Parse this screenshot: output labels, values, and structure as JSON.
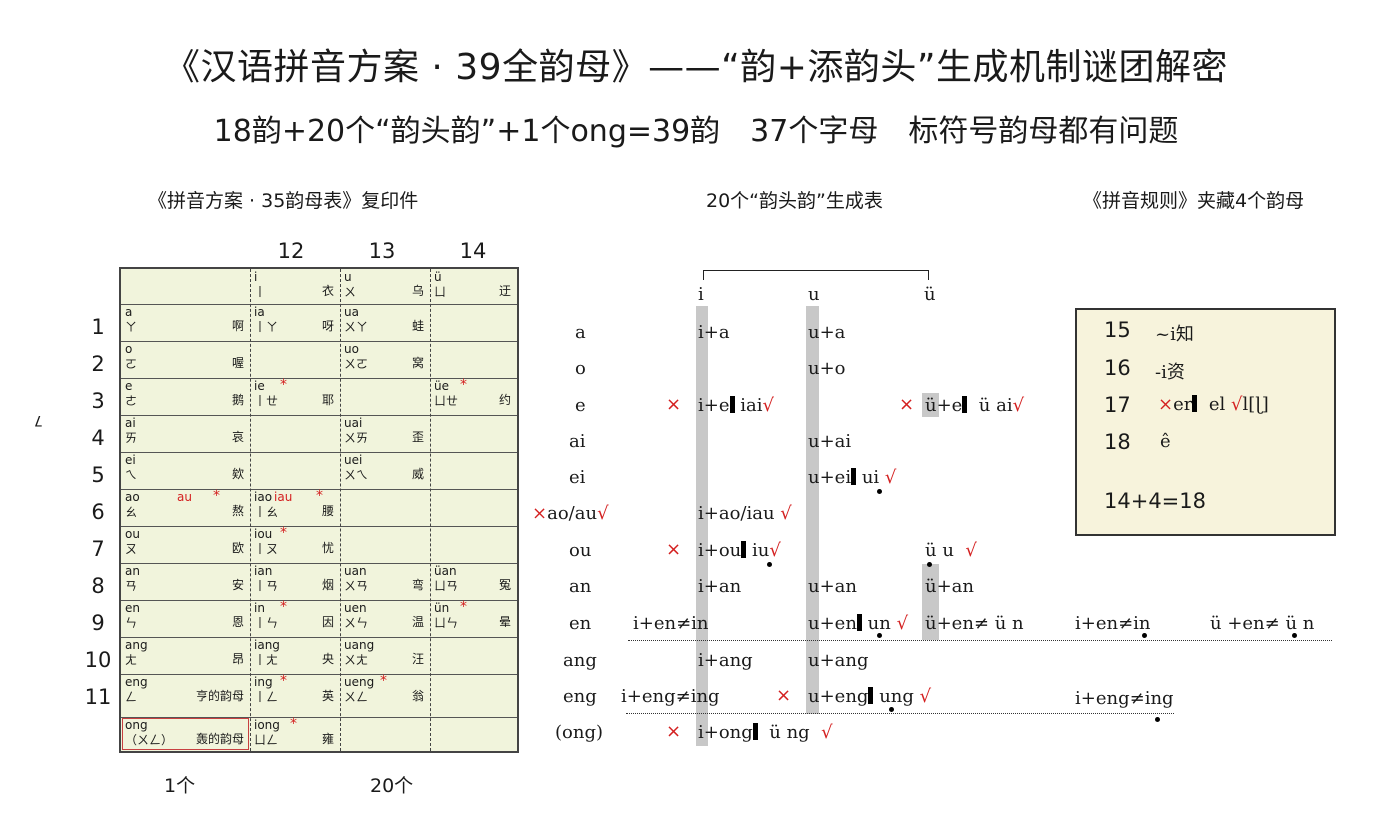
{
  "title": "《汉语拼音方案 · 39全韵母》——“韵+添韵头”生成机制谜团解密",
  "subtitle": "18韵+20个“韵头韵”+1个ong=39韵　37个字母　标符号韵母都有问题",
  "captions": {
    "left": "《拼音方案 · 35韵母表》复印件",
    "middle": "20个“韵头韵”生成表",
    "right": "《拼音规则》夹藏4个韵母"
  },
  "side_mark": "7",
  "col_numbers": [
    "12",
    "13",
    "14"
  ],
  "row_numbers": [
    "1",
    "2",
    "3",
    "4",
    "5",
    "6",
    "7",
    "8",
    "9",
    "10",
    "11"
  ],
  "bottom_labels": {
    "left": "1个",
    "middle": "20个"
  },
  "table": {
    "header": [
      {
        "py": "i",
        "zy": "丨",
        "hz": "衣"
      },
      {
        "py": "u",
        "zy": "ㄨ",
        "hz": "乌"
      },
      {
        "py": "ü",
        "zy": "ㄩ",
        "hz": "迂"
      }
    ],
    "rows": [
      [
        {
          "py": "a",
          "zy": "ㄚ",
          "hz": "啊"
        },
        {
          "py": "ia",
          "zy": "丨ㄚ",
          "hz": "呀"
        },
        {
          "py": "ua",
          "zy": "ㄨㄚ",
          "hz": "蛙"
        },
        {
          "py": "",
          "zy": "",
          "hz": ""
        }
      ],
      [
        {
          "py": "o",
          "zy": "ㄛ",
          "hz": "喔"
        },
        {
          "py": "",
          "zy": "",
          "hz": ""
        },
        {
          "py": "uo",
          "zy": "ㄨㄛ",
          "hz": "窝"
        },
        {
          "py": "",
          "zy": "",
          "hz": ""
        }
      ],
      [
        {
          "py": "e",
          "zy": "ㄜ",
          "hz": "鹅"
        },
        {
          "py": "ie",
          "zy": "丨ㄝ",
          "hz": "耶",
          "star": "*"
        },
        {
          "py": "",
          "zy": "",
          "hz": ""
        },
        {
          "py": "üe",
          "zy": "ㄩㄝ",
          "hz": "约",
          "star": "*"
        }
      ],
      [
        {
          "py": "ai",
          "zy": "ㄞ",
          "hz": "哀"
        },
        {
          "py": "",
          "zy": "",
          "hz": ""
        },
        {
          "py": "uai",
          "zy": "ㄨㄞ",
          "hz": "歪"
        },
        {
          "py": "",
          "zy": "",
          "hz": ""
        }
      ],
      [
        {
          "py": "ei",
          "zy": "ㄟ",
          "hz": "欸"
        },
        {
          "py": "",
          "zy": "",
          "hz": ""
        },
        {
          "py": "uei",
          "zy": "ㄨㄟ",
          "hz": "威"
        },
        {
          "py": "",
          "zy": "",
          "hz": ""
        }
      ],
      [
        {
          "py": "ao",
          "zy": "ㄠ",
          "hz": "熬",
          "extra": "au",
          "star": "*"
        },
        {
          "py": "iao",
          "zy": "丨ㄠ",
          "hz": "腰",
          "extra": "iau",
          "star": "*"
        },
        {
          "py": "",
          "zy": "",
          "hz": ""
        },
        {
          "py": "",
          "zy": "",
          "hz": ""
        }
      ],
      [
        {
          "py": "ou",
          "zy": "ㄡ",
          "hz": "欧"
        },
        {
          "py": "iou",
          "zy": "丨ㄡ",
          "hz": "忧",
          "star": "*"
        },
        {
          "py": "",
          "zy": "",
          "hz": ""
        },
        {
          "py": "",
          "zy": "",
          "hz": ""
        }
      ],
      [
        {
          "py": "an",
          "zy": "ㄢ",
          "hz": "安"
        },
        {
          "py": "ian",
          "zy": "丨ㄢ",
          "hz": "烟"
        },
        {
          "py": "uan",
          "zy": "ㄨㄢ",
          "hz": "弯"
        },
        {
          "py": "üan",
          "zy": "ㄩㄢ",
          "hz": "冤"
        }
      ],
      [
        {
          "py": "en",
          "zy": "ㄣ",
          "hz": "恩"
        },
        {
          "py": "in",
          "zy": "丨ㄣ",
          "hz": "因",
          "star": "*"
        },
        {
          "py": "uen",
          "zy": "ㄨㄣ",
          "hz": "温"
        },
        {
          "py": "ün",
          "zy": "ㄩㄣ",
          "hz": "晕",
          "star": "*"
        }
      ],
      [
        {
          "py": "ang",
          "zy": "ㄤ",
          "hz": "昂"
        },
        {
          "py": "iang",
          "zy": "丨ㄤ",
          "hz": "央"
        },
        {
          "py": "uang",
          "zy": "ㄨㄤ",
          "hz": "汪"
        },
        {
          "py": "",
          "zy": "",
          "hz": ""
        }
      ],
      [
        {
          "py": "eng",
          "zy": "ㄥ",
          "hz": "亨的韵母"
        },
        {
          "py": "ing",
          "zy": "丨ㄥ",
          "hz": "英",
          "star": "*"
        },
        {
          "py": "ueng",
          "zy": "ㄨㄥ",
          "hz": "翁",
          "star": "*"
        },
        {
          "py": "",
          "zy": "",
          "hz": ""
        }
      ],
      [
        {
          "py": "ong",
          "zy": "（ㄨㄥ）",
          "hz": "轰的韵母"
        },
        {
          "py": "iong",
          "zy": "ㄩㄥ",
          "hz": "雍",
          "star": "*"
        },
        {
          "py": "",
          "zy": "",
          "hz": ""
        },
        {
          "py": "",
          "zy": "",
          "hz": ""
        }
      ]
    ]
  },
  "middle": {
    "heads": [
      "i",
      "u",
      "ü"
    ],
    "finals": [
      "a",
      "o",
      "e",
      "ai",
      "ei",
      "ao/au",
      "ou",
      "an",
      "en",
      "ang",
      "eng",
      "(ong)"
    ],
    "cross": "×",
    "check": "√",
    "rows": {
      "a": {
        "i": "i+a",
        "u": "u+a"
      },
      "o": {
        "u": "u+o"
      },
      "e": {
        "i": "i+e",
        "i_alt": "iai",
        "u_prefix": "ü",
        "u_rest": "+e",
        "u_alt": "ü ai"
      },
      "ai": {
        "u": "u+ai"
      },
      "ei": {
        "u": "u+ei",
        "u_alt": "ui"
      },
      "ao": {
        "left": "ao/au",
        "i": "i+ao/iau"
      },
      "ou": {
        "i": "i+ou",
        "i_alt": "iu",
        "u_text": "ü u"
      },
      "an": {
        "i": "i+an",
        "u": "u+an",
        "uu_prefix": "ü",
        "uu_rest": "+an"
      },
      "en": {
        "left": "i+en≠in",
        "u": "u+en",
        "u_alt": "un",
        "uu_prefix": "ü",
        "uu_rest": "+en≠ ü n",
        "r1": "i+en≠in",
        "r2": "ü +en≠ ü n"
      },
      "ang": {
        "i": "i+ang",
        "u": "u+ang"
      },
      "eng": {
        "left": "i+eng≠ing",
        "u": "u+eng",
        "u_alt": "ung",
        "r1": "i+eng≠ing"
      },
      "ong": {
        "i": "i+ong",
        "i_alt": "ü ng"
      }
    }
  },
  "box": {
    "items": [
      {
        "num": "15",
        "text": "~i知"
      },
      {
        "num": "16",
        "text": "-i资"
      },
      {
        "num": "17",
        "text_a": "er",
        "text_b": "el",
        "text_c": "l[ɭ]"
      },
      {
        "num": "18",
        "text": "ê"
      }
    ],
    "sum": "14+4=18"
  },
  "colors": {
    "accent_red": "#d42020",
    "table_bg": "#f1f4dc",
    "box_bg": "#f7f3dc",
    "gray_bar": "#c8c8c8"
  }
}
